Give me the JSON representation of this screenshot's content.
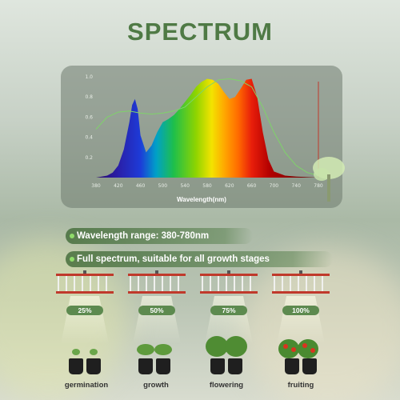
{
  "title": "SPECTRUM",
  "chart_data": {
    "type": "area",
    "xlabel": "Wavelength(nm)",
    "ylabel": "",
    "xlim": [
      380,
      780
    ],
    "ylim": [
      0,
      1.0
    ],
    "x_ticks": [
      "380",
      "420",
      "460",
      "500",
      "540",
      "580",
      "620",
      "660",
      "700",
      "740",
      "780"
    ],
    "y_ticks": [
      "0.2",
      "0.4",
      "0.6",
      "0.8",
      "1.0"
    ],
    "series": [
      {
        "x": [
          380,
          390,
          400,
          410,
          420,
          430,
          440,
          445,
          450,
          455,
          460,
          470,
          480,
          490,
          500,
          510,
          520,
          530,
          540,
          550,
          560,
          570,
          580,
          590,
          600,
          610,
          620,
          630,
          640,
          650,
          660,
          670,
          680,
          690,
          700,
          720,
          740,
          760,
          780
        ],
        "y": [
          0.0,
          0.01,
          0.02,
          0.05,
          0.12,
          0.28,
          0.55,
          0.72,
          0.78,
          0.68,
          0.42,
          0.25,
          0.32,
          0.45,
          0.55,
          0.58,
          0.62,
          0.68,
          0.75,
          0.82,
          0.9,
          0.95,
          0.98,
          0.97,
          0.93,
          0.85,
          0.78,
          0.8,
          0.88,
          0.97,
          0.98,
          0.8,
          0.45,
          0.18,
          0.06,
          0.02,
          0.01,
          0.005,
          0.0
        ]
      },
      {
        "x": [
          380,
          400,
          420,
          440,
          460,
          480,
          500,
          520,
          540,
          560,
          580,
          600,
          620,
          640,
          660,
          680,
          700,
          720,
          740,
          760,
          780
        ],
        "y": [
          0.48,
          0.6,
          0.65,
          0.66,
          0.64,
          0.63,
          0.64,
          0.66,
          0.7,
          0.8,
          0.9,
          0.97,
          0.98,
          0.96,
          0.9,
          0.7,
          0.45,
          0.25,
          0.12,
          0.05,
          0.02
        ]
      }
    ]
  },
  "features": [
    {
      "text": "Wavelength range: 380-780nm"
    },
    {
      "text": "Full spectrum, suitable for all growth stages"
    }
  ],
  "dimming": [
    "25%",
    "50%",
    "75%",
    "100%"
  ],
  "stages": [
    "germination",
    "growth",
    "flowering",
    "fruiting"
  ],
  "colors": {
    "title_green": "#4f7a45",
    "pill_green": "#5d8a4f",
    "lamp_red": "#c0392b"
  }
}
